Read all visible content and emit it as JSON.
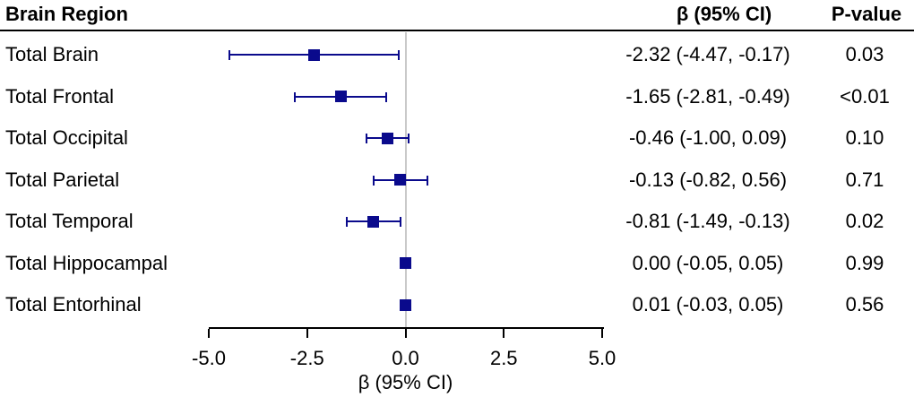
{
  "header": {
    "region": "Brain Region",
    "beta": "β (95% CI)",
    "pvalue": "P-value"
  },
  "chart_data": {
    "type": "scatter",
    "subtype": "forest-plot",
    "title": "",
    "xlabel": "β (95% CI)",
    "xlim": [
      -5,
      5
    ],
    "xtick_values": [
      -5,
      -2.5,
      0,
      2.5,
      5
    ],
    "xticks": [
      "-5.0",
      "-2.5",
      "0.0",
      "2.5",
      "5.0"
    ],
    "refline_x": 0,
    "grid": false,
    "marker": "square",
    "marker_color": "#0a0a8c",
    "refline_color": "#c9c9c9",
    "axis_color": "#000000",
    "rows": [
      {
        "label": "Total Brain",
        "beta": -2.32,
        "ci_low": -4.47,
        "ci_high": -0.17,
        "beta_ci_text": "-2.32 (-4.47, -0.17)",
        "p_value": "0.03"
      },
      {
        "label": "Total Frontal",
        "beta": -1.65,
        "ci_low": -2.81,
        "ci_high": -0.49,
        "beta_ci_text": "-1.65 (-2.81, -0.49)",
        "p_value": "<0.01"
      },
      {
        "label": "Total Occipital",
        "beta": -0.46,
        "ci_low": -1.0,
        "ci_high": 0.09,
        "beta_ci_text": "-0.46 (-1.00, 0.09)",
        "p_value": "0.10"
      },
      {
        "label": "Total Parietal",
        "beta": -0.13,
        "ci_low": -0.82,
        "ci_high": 0.56,
        "beta_ci_text": "-0.13 (-0.82, 0.56)",
        "p_value": "0.71"
      },
      {
        "label": "Total Temporal",
        "beta": -0.81,
        "ci_low": -1.49,
        "ci_high": -0.13,
        "beta_ci_text": "-0.81 (-1.49, -0.13)",
        "p_value": "0.02"
      },
      {
        "label": "Total Hippocampal",
        "beta": 0.0,
        "ci_low": -0.05,
        "ci_high": 0.05,
        "beta_ci_text": "0.00 (-0.05, 0.05)",
        "p_value": "0.99"
      },
      {
        "label": "Total Entorhinal",
        "beta": 0.01,
        "ci_low": -0.03,
        "ci_high": 0.05,
        "beta_ci_text": "0.01 (-0.03, 0.05)",
        "p_value": "0.56"
      }
    ]
  }
}
